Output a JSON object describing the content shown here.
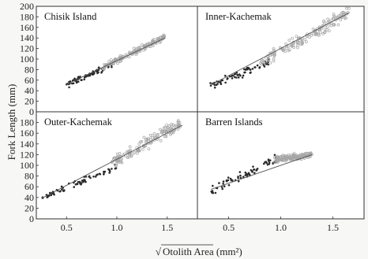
{
  "colors": {
    "dark_points": "#2b2b2b",
    "light_points": "#a6a6a6",
    "regression": "#555555",
    "frame": "#333333"
  },
  "chart_data": {
    "type": "scatter",
    "layout": "2x2 panels, shared axes",
    "xlabel_prefix": "√",
    "xlabel": "Otolith Area (mm²)",
    "ylabel": "Fork Length (mm)",
    "xlim": [
      0.2,
      1.8
    ],
    "ylim": [
      0,
      200
    ],
    "x_ticks": [
      "0.5",
      "1.0",
      "1.5"
    ],
    "y_ticks": [
      "0",
      "20",
      "40",
      "60",
      "80",
      "100",
      "120",
      "140",
      "160",
      "180",
      "200"
    ],
    "y_ticks_bottom": [
      "0",
      "20",
      "40",
      "60",
      "80",
      "100",
      "120",
      "140",
      "160",
      "180"
    ],
    "grid": false,
    "panels": [
      {
        "title": "Chisik Island",
        "regression": {
          "x": [
            0.5,
            1.48
          ],
          "y": [
            52,
            140
          ]
        },
        "series": [
          {
            "style": "dark-filled",
            "x_range": [
              0.48,
              0.96
            ],
            "center": {
              "slope": 85,
              "intercept": 8
            },
            "spread": 4
          },
          {
            "style": "light-open",
            "x_range": [
              0.86,
              1.48
            ],
            "center": {
              "slope": 92,
              "intercept": 6
            },
            "spread": 4
          }
        ]
      },
      {
        "title": "Inner-Kachemak",
        "regression": {
          "x": [
            0.32,
            1.66
          ],
          "y": [
            50,
            188
          ]
        },
        "series": [
          {
            "style": "dark-filled",
            "x_range": [
              0.32,
              0.9
            ],
            "center": {
              "slope": 82,
              "intercept": 22
            },
            "spread": 5
          },
          {
            "style": "light-open",
            "x_range": [
              0.78,
              1.66
            ],
            "center": {
              "slope": 110,
              "intercept": 6
            },
            "spread": 8
          }
        ]
      },
      {
        "title": "Outer-Kachemak",
        "regression": {
          "x": [
            0.25,
            1.65
          ],
          "y": [
            38,
            175
          ]
        },
        "series": [
          {
            "style": "dark-filled",
            "x_range": [
              0.25,
              1.0
            ],
            "center": {
              "slope": 80,
              "intercept": 18
            },
            "spread": 4
          },
          {
            "style": "light-open",
            "x_range": [
              0.95,
              1.64
            ],
            "center": {
              "slope": 110,
              "intercept": -2
            },
            "spread": 8
          }
        ]
      },
      {
        "title": "Barren Islands",
        "regression": {
          "x": [
            0.33,
            1.3
          ],
          "y": [
            55,
            120
          ]
        },
        "series": [
          {
            "style": "dark-filled",
            "x_range": [
              0.33,
              0.98
            ],
            "center": {
              "slope": 95,
              "intercept": 20
            },
            "spread": 7
          },
          {
            "style": "light-open",
            "x_range": [
              0.94,
              1.3
            ],
            "center": {
              "slope": 25,
              "intercept": 87
            },
            "spread": 4
          }
        ]
      }
    ]
  }
}
